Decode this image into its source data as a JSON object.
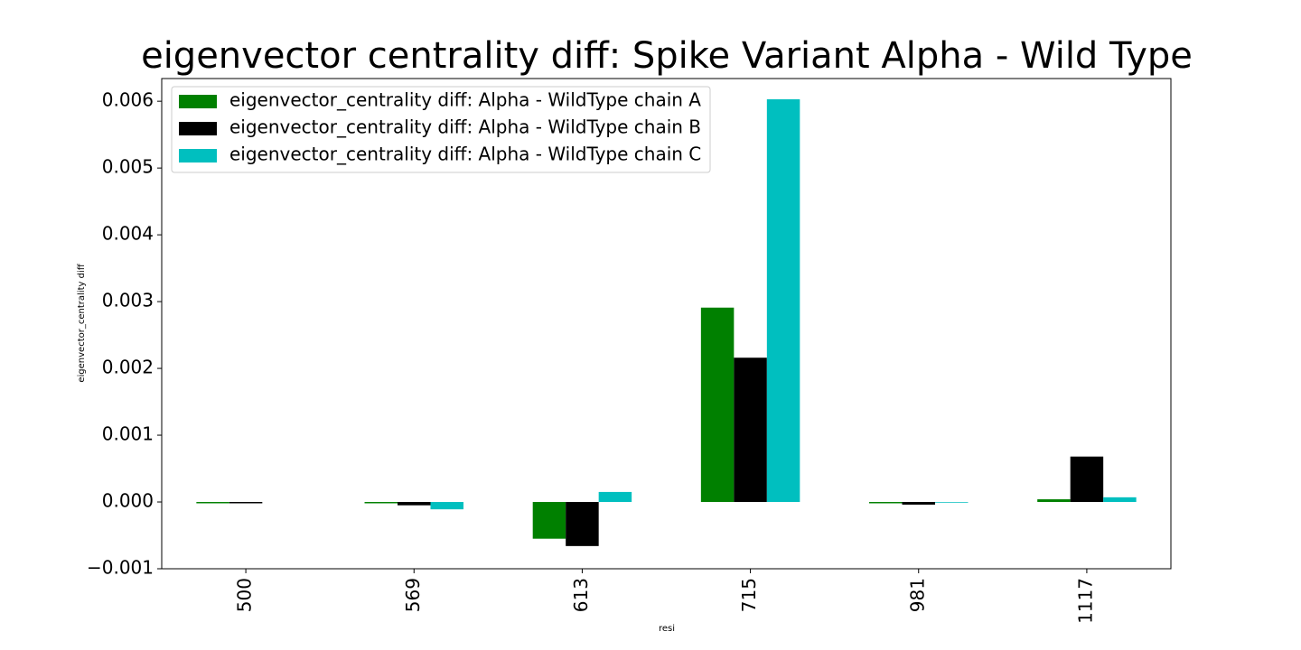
{
  "chart_data": {
    "type": "bar",
    "title": "eigenvector centrality diff: Spike Variant Alpha - Wild Type",
    "x_label": "resi",
    "y_label": "eigenvector_centrality diff",
    "categories": [
      "500",
      "569",
      "613",
      "715",
      "981",
      "1117"
    ],
    "series": [
      {
        "name": "eigenvector_centrality diff: Alpha - WildType chain A",
        "color": "#008000",
        "values": [
          -2e-05,
          -2e-05,
          -0.00055,
          0.00291,
          -2e-05,
          4e-05
        ]
      },
      {
        "name": "eigenvector_centrality diff: Alpha - WildType chain B",
        "color": "#000000",
        "values": [
          -2e-05,
          -5e-05,
          -0.00066,
          0.00216,
          -4e-05,
          0.00068
        ]
      },
      {
        "name": "eigenvector_centrality diff: Alpha - WildType chain C",
        "color": "#00bfbf",
        "values": [
          0,
          -0.00011,
          0.00015,
          0.00603,
          -1e-05,
          7e-05
        ]
      }
    ],
    "ylim": [
      -0.001,
      0.00634
    ],
    "yticks": [
      {
        "value": -0.001,
        "label": "−0.001"
      },
      {
        "value": 0,
        "label": "0.000"
      },
      {
        "value": 0.001,
        "label": "0.001"
      },
      {
        "value": 0.002,
        "label": "0.002"
      },
      {
        "value": 0.003,
        "label": "0.003"
      },
      {
        "value": 0.004,
        "label": "0.004"
      },
      {
        "value": 0.005,
        "label": "0.005"
      },
      {
        "value": 0.006,
        "label": "0.006"
      }
    ],
    "grid": false,
    "legend": "upper left"
  }
}
